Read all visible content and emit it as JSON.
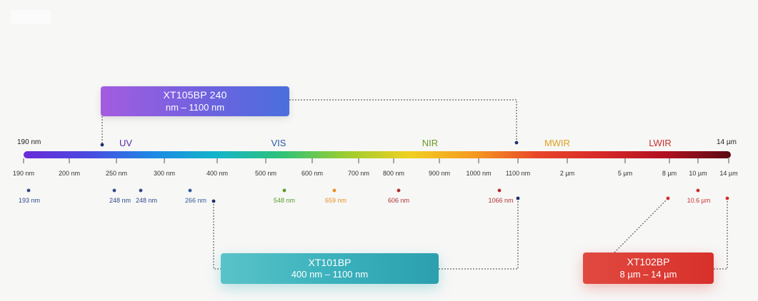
{
  "boxes": {
    "xt105": {
      "line1": "XT105BP  240",
      "line2": "nm – 1100 nm"
    },
    "xt101": {
      "line1": "XT101BP",
      "line2": "400 nm – 1100 nm"
    },
    "xt102": {
      "line1": "XT102BP",
      "line2": "8 µm – 14 µm"
    }
  },
  "ends": {
    "left": "190 nm",
    "right": "14 µm"
  },
  "regions": [
    {
      "label": "UV",
      "color": "#5a2fa8"
    },
    {
      "label": "VIS",
      "color": "#2a5aa8"
    },
    {
      "label": "NIR",
      "color": "#6a9a2a"
    },
    {
      "label": "MWIR",
      "color": "#e0a020"
    },
    {
      "label": "LWIR",
      "color": "#c83030"
    }
  ],
  "ticks": [
    "190 nm",
    "200 nm",
    "250 nm",
    "300 nm",
    "400 nm",
    "500 nm",
    "600 nm",
    "700 nm",
    "800 nm",
    "900 nm",
    "1000 nm",
    "1100 nm",
    "2 µm",
    "5 µm",
    "8 µm",
    "10 µm",
    "14 µm"
  ],
  "markers": [
    {
      "label": "193 nm",
      "color": "#2f4a8a"
    },
    {
      "label": "248 nm",
      "color": "#2f4a8a"
    },
    {
      "label": "248 nm",
      "color": "#2f4a8a"
    },
    {
      "label": "266 nm",
      "color": "#2f5a9a"
    },
    {
      "label": "548 nm",
      "color": "#5a9a2a"
    },
    {
      "label": "659 nm",
      "color": "#e89020"
    },
    {
      "label": "606 nm",
      "color": "#b03030"
    },
    {
      "label": "1066 nm",
      "color": "#b03030"
    },
    {
      "label": "10.6 µm",
      "color": "#c83030"
    }
  ],
  "colors": {
    "gradient": [
      "#6a2bd8",
      "#4a4ae0",
      "#1e88e5",
      "#12b5c9",
      "#2ec27a",
      "#9acd32",
      "#f0d020",
      "#f59a20",
      "#e8452a",
      "#d62828",
      "#b01020",
      "#5a0a14"
    ],
    "tick": "#333333",
    "connector": "#444444"
  }
}
